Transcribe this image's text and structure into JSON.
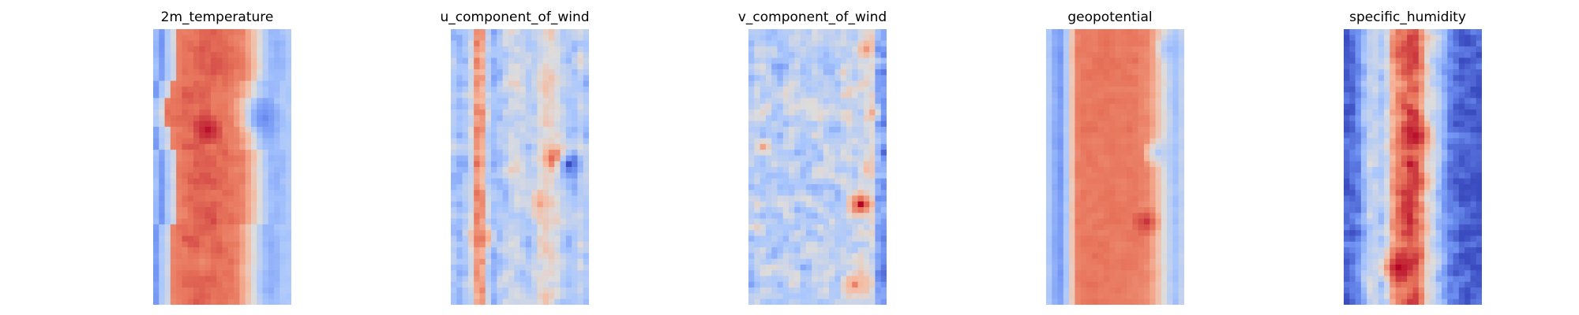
{
  "chart_data": {
    "type": "heatmap",
    "colormap": "coolwarm",
    "colormap_stops": [
      "#3b4cc0",
      "#6f92f3",
      "#aac7fd",
      "#dddcdc",
      "#f7b89c",
      "#e7745b",
      "#b40426"
    ],
    "axes": "off",
    "grid": false,
    "legend": "none",
    "rows": 48,
    "cols": 24,
    "panels": [
      {
        "title": "2m_temperature",
        "column_profile": [
          0.3,
          0.2,
          0.35,
          0.45,
          0.8,
          0.82,
          0.84,
          0.85,
          0.86,
          0.86,
          0.86,
          0.85,
          0.84,
          0.83,
          0.82,
          0.8,
          0.72,
          0.62,
          0.5,
          0.38,
          0.3,
          0.28,
          0.3,
          0.35
        ],
        "row_shift": [
          0,
          0,
          0,
          0,
          0,
          0,
          0,
          0,
          0,
          -1,
          -1,
          -1,
          -2,
          -2,
          -2,
          -2,
          -2,
          -1,
          -1,
          -1,
          -1,
          0,
          0,
          0,
          0,
          0,
          0,
          0,
          0,
          0,
          0,
          0,
          0,
          0,
          -1,
          -1,
          -1,
          -1,
          -1,
          -1,
          -1,
          -1,
          -1,
          -1,
          -1,
          -1,
          -1,
          -1
        ],
        "noise": 0.05,
        "blobs": [
          {
            "row": 17,
            "col": 9,
            "radius": 2,
            "value": 0.98
          },
          {
            "row": 15,
            "col": 19,
            "radius": 3,
            "value": 0.15
          },
          {
            "row": 40,
            "col": 8,
            "radius": 2,
            "value": 0.78
          }
        ]
      },
      {
        "title": "u_component_of_wind",
        "column_profile": [
          0.35,
          0.3,
          0.35,
          0.45,
          0.75,
          0.7,
          0.4,
          0.3,
          0.35,
          0.4,
          0.45,
          0.45,
          0.4,
          0.35,
          0.4,
          0.5,
          0.55,
          0.55,
          0.5,
          0.4,
          0.35,
          0.35,
          0.4,
          0.35
        ],
        "row_shift": [
          0,
          0,
          0,
          0,
          0,
          0,
          0,
          0,
          0,
          0,
          0,
          0,
          0,
          0,
          0,
          0,
          0,
          0,
          0,
          0,
          0,
          0,
          0,
          0,
          0,
          0,
          0,
          0,
          0,
          0,
          0,
          0,
          0,
          0,
          0,
          0,
          0,
          0,
          0,
          0,
          0,
          0,
          0,
          0,
          0,
          0,
          0,
          0
        ],
        "noise": 0.16,
        "blobs": [
          {
            "row": 22,
            "col": 18,
            "radius": 2,
            "value": 1.0
          },
          {
            "row": 23,
            "col": 20,
            "radius": 2,
            "value": 0.0
          },
          {
            "row": 30,
            "col": 15,
            "radius": 2,
            "value": 0.72
          },
          {
            "row": 36,
            "col": 5,
            "radius": 2,
            "value": 0.82
          }
        ]
      },
      {
        "title": "v_component_of_wind",
        "column_profile": [
          0.35,
          0.4,
          0.4,
          0.4,
          0.38,
          0.36,
          0.4,
          0.42,
          0.4,
          0.38,
          0.36,
          0.4,
          0.42,
          0.4,
          0.38,
          0.36,
          0.4,
          0.42,
          0.42,
          0.45,
          0.48,
          0.5,
          0.25,
          0.2
        ],
        "row_shift": [
          0,
          0,
          0,
          0,
          0,
          0,
          0,
          0,
          0,
          0,
          0,
          0,
          0,
          0,
          0,
          0,
          0,
          0,
          0,
          0,
          0,
          0,
          0,
          0,
          0,
          0,
          0,
          0,
          0,
          0,
          0,
          0,
          0,
          0,
          0,
          0,
          0,
          0,
          0,
          0,
          0,
          0,
          0,
          0,
          0,
          0,
          0,
          0
        ],
        "noise": 0.2,
        "blobs": [
          {
            "row": 30,
            "col": 19,
            "radius": 2,
            "value": 1.0
          },
          {
            "row": 3,
            "col": 20,
            "radius": 1,
            "value": 0.75
          },
          {
            "row": 44,
            "col": 18,
            "radius": 2,
            "value": 0.8
          },
          {
            "row": 14,
            "col": 21,
            "radius": 1,
            "value": 0.7
          },
          {
            "row": 20,
            "col": 2,
            "radius": 1,
            "value": 0.72
          }
        ]
      },
      {
        "title": "geopotential",
        "column_profile": [
          0.35,
          0.25,
          0.2,
          0.35,
          0.6,
          0.8,
          0.82,
          0.82,
          0.82,
          0.82,
          0.82,
          0.82,
          0.82,
          0.82,
          0.82,
          0.82,
          0.8,
          0.78,
          0.72,
          0.62,
          0.5,
          0.4,
          0.32,
          0.4
        ],
        "row_shift": [
          0,
          0,
          0,
          0,
          0,
          0,
          0,
          0,
          0,
          0,
          0,
          0,
          0,
          0,
          0,
          0,
          0,
          0,
          0,
          0,
          0,
          0,
          0,
          0,
          0,
          0,
          0,
          0,
          0,
          0,
          0,
          0,
          0,
          0,
          0,
          0,
          0,
          0,
          0,
          0,
          0,
          0,
          0,
          0,
          0,
          0,
          0,
          0
        ],
        "noise": 0.04,
        "blobs": [
          {
            "row": 33,
            "col": 17,
            "radius": 2,
            "value": 0.93
          },
          {
            "row": 21,
            "col": 19,
            "radius": 2,
            "value": 0.35
          },
          {
            "row": 3,
            "col": 21,
            "radius": 2,
            "value": 0.3
          }
        ]
      },
      {
        "title": "specific_humidity",
        "column_profile": [
          0.05,
          0.08,
          0.15,
          0.3,
          0.4,
          0.4,
          0.35,
          0.45,
          0.7,
          0.8,
          0.85,
          0.88,
          0.85,
          0.75,
          0.55,
          0.45,
          0.35,
          0.25,
          0.15,
          0.1,
          0.05,
          0.05,
          0.05,
          0.05
        ],
        "row_shift": [
          0,
          0,
          0,
          0,
          0,
          0,
          0,
          0,
          0,
          0,
          0,
          0,
          0,
          0,
          0,
          0,
          0,
          0,
          0,
          0,
          0,
          0,
          0,
          0,
          0,
          0,
          0,
          0,
          0,
          0,
          0,
          0,
          0,
          0,
          0,
          0,
          0,
          0,
          0,
          0,
          0,
          0,
          0,
          0,
          0,
          0,
          0,
          0
        ],
        "noise": 0.14,
        "blobs": [
          {
            "row": 41,
            "col": 9,
            "radius": 3,
            "value": 1.0
          },
          {
            "row": 18,
            "col": 12,
            "radius": 3,
            "value": 0.98
          },
          {
            "row": 3,
            "col": 10,
            "radius": 2,
            "value": 0.9
          },
          {
            "row": 26,
            "col": 12,
            "radius": 2,
            "value": 0.92
          }
        ]
      }
    ]
  }
}
